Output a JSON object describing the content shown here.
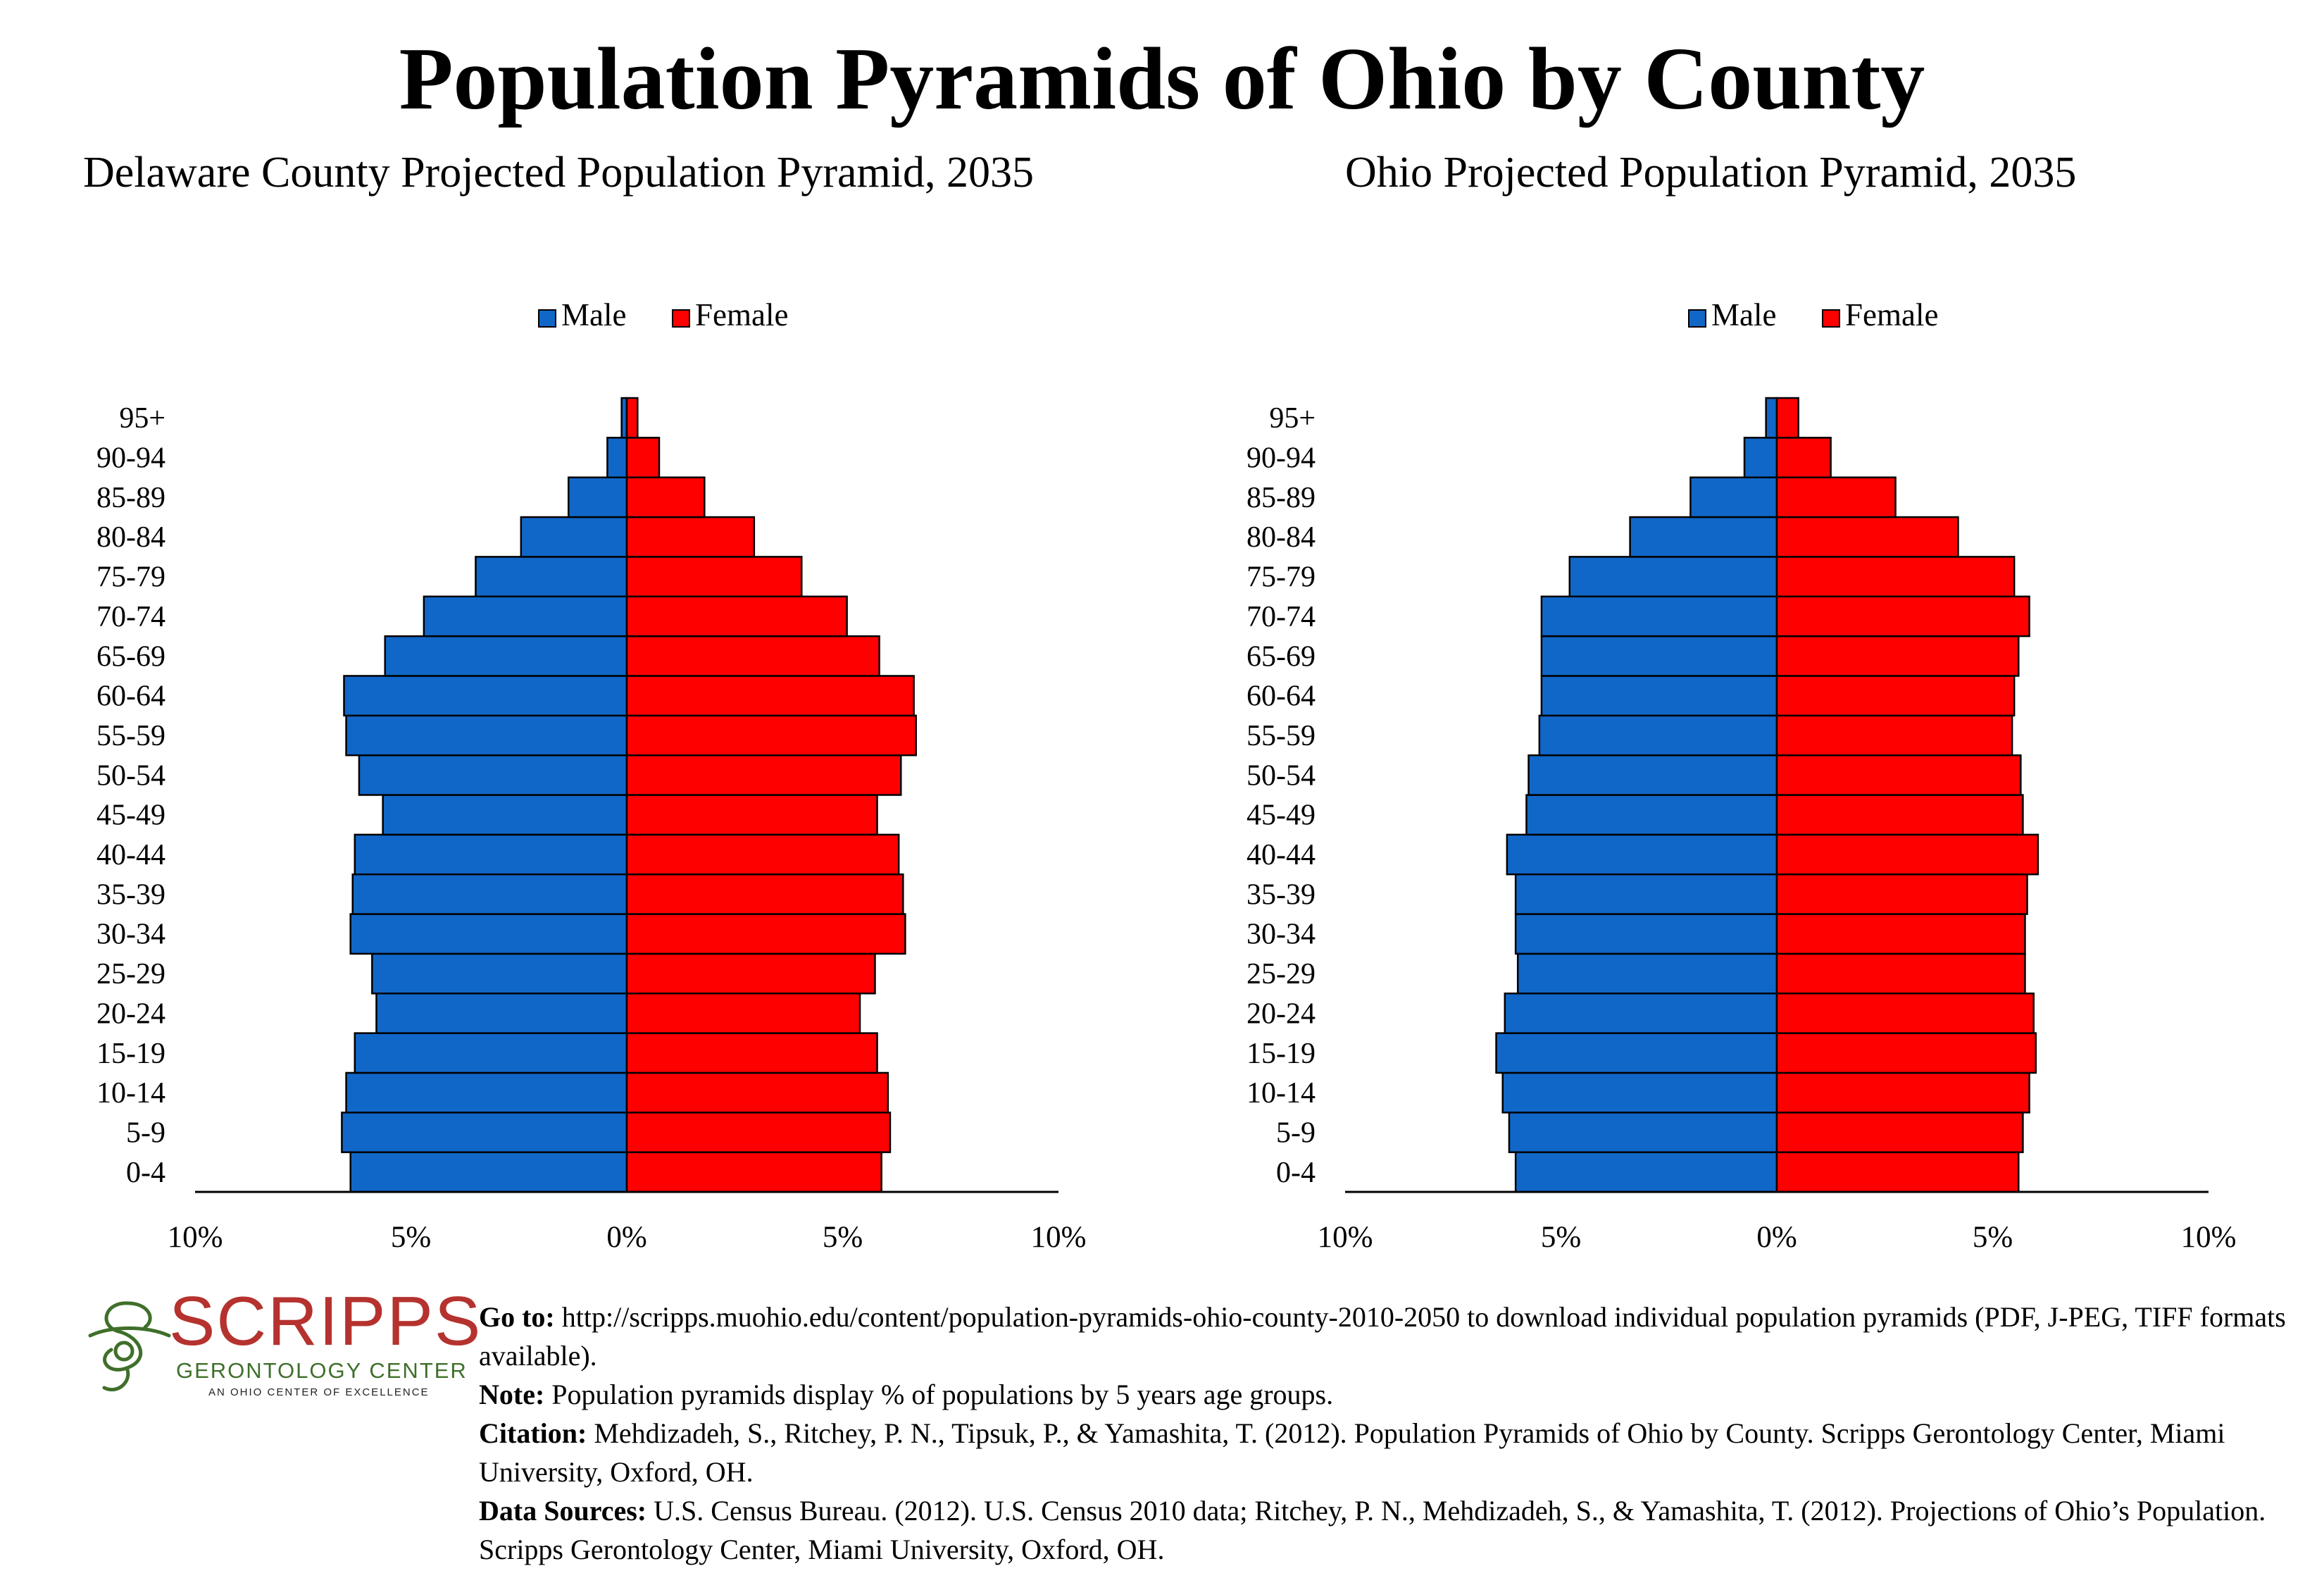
{
  "title": "Population Pyramids of Ohio by County",
  "legend": {
    "male": "Male",
    "female": "Female"
  },
  "colors": {
    "male": "#1167c8",
    "female": "#ff0000",
    "border": "#000000"
  },
  "chart_data": [
    {
      "type": "bar",
      "orientation": "horizontal-pyramid",
      "title": "Delaware County Projected Population Pyramid, 2035",
      "categories": [
        "0-4",
        "5-9",
        "10-14",
        "15-19",
        "20-24",
        "25-29",
        "30-34",
        "35-39",
        "40-44",
        "45-49",
        "50-54",
        "55-59",
        "60-64",
        "65-69",
        "70-74",
        "75-79",
        "80-84",
        "85-89",
        "90-94",
        "95+"
      ],
      "series": [
        {
          "name": "Male",
          "values": [
            6.4,
            6.6,
            6.5,
            6.3,
            5.8,
            5.9,
            6.4,
            6.35,
            6.3,
            5.65,
            6.2,
            6.5,
            6.55,
            5.6,
            4.7,
            3.5,
            2.45,
            1.35,
            0.45,
            0.12
          ]
        },
        {
          "name": "Female",
          "values": [
            5.9,
            6.1,
            6.05,
            5.8,
            5.4,
            5.75,
            6.45,
            6.4,
            6.3,
            5.8,
            6.35,
            6.7,
            6.65,
            5.85,
            5.1,
            4.05,
            2.95,
            1.8,
            0.75,
            0.25
          ]
        }
      ],
      "xlim": [
        -10,
        10
      ],
      "xticks": [
        "10%",
        "5%",
        "0%",
        "5%",
        "10%"
      ],
      "legend_position": "top-center",
      "grid": false
    },
    {
      "type": "bar",
      "orientation": "horizontal-pyramid",
      "title": "Ohio Projected Population Pyramid, 2035",
      "categories": [
        "0-4",
        "5-9",
        "10-14",
        "15-19",
        "20-24",
        "25-29",
        "30-34",
        "35-39",
        "40-44",
        "45-49",
        "50-54",
        "55-59",
        "60-64",
        "65-69",
        "70-74",
        "75-79",
        "80-84",
        "85-89",
        "90-94",
        "95+"
      ],
      "series": [
        {
          "name": "Male",
          "values": [
            6.05,
            6.2,
            6.35,
            6.5,
            6.3,
            6.0,
            6.05,
            6.05,
            6.25,
            5.8,
            5.75,
            5.5,
            5.45,
            5.45,
            5.45,
            4.8,
            3.4,
            2.0,
            0.75,
            0.25
          ]
        },
        {
          "name": "Female",
          "values": [
            5.6,
            5.7,
            5.85,
            6.0,
            5.95,
            5.75,
            5.75,
            5.8,
            6.05,
            5.7,
            5.65,
            5.45,
            5.5,
            5.6,
            5.85,
            5.5,
            4.2,
            2.75,
            1.25,
            0.5
          ]
        }
      ],
      "xlim": [
        -10,
        10
      ],
      "xticks": [
        "10%",
        "5%",
        "0%",
        "5%",
        "10%"
      ],
      "legend_position": "top-center",
      "grid": false
    }
  ],
  "logo": {
    "word": "SCRIPPS",
    "sub": "GERONTOLOGY CENTER",
    "tag": "AN OHIO CENTER OF EXCELLENCE",
    "colors": {
      "word": "#b5322f",
      "green": "#3f6f2a"
    }
  },
  "notes": {
    "goto_label": "Go to:",
    "goto_text": " http://scripps.muohio.edu/content/population-pyramids-ohio-county-2010-2050 to download individual population pyramids (PDF, J-PEG, TIFF formats available).",
    "note_label": "Note:",
    "note_text": " Population pyramids display % of populations by 5 years age groups.",
    "citation_label": "Citation:",
    "citation_text": " Mehdizadeh, S., Ritchey, P. N., Tipsuk, P., & Yamashita, T. (2012). Population Pyramids of Ohio by County. Scripps Gerontology Center, Miami University, Oxford, OH.",
    "sources_label": "Data Sources:",
    "sources_text": " U.S. Census Bureau. (2012). U.S. Census 2010 data; Ritchey, P. N., Mehdizadeh, S., & Yamashita, T. (2012). Projections of Ohio’s Population. Scripps Gerontology Center, Miami University, Oxford, OH."
  }
}
